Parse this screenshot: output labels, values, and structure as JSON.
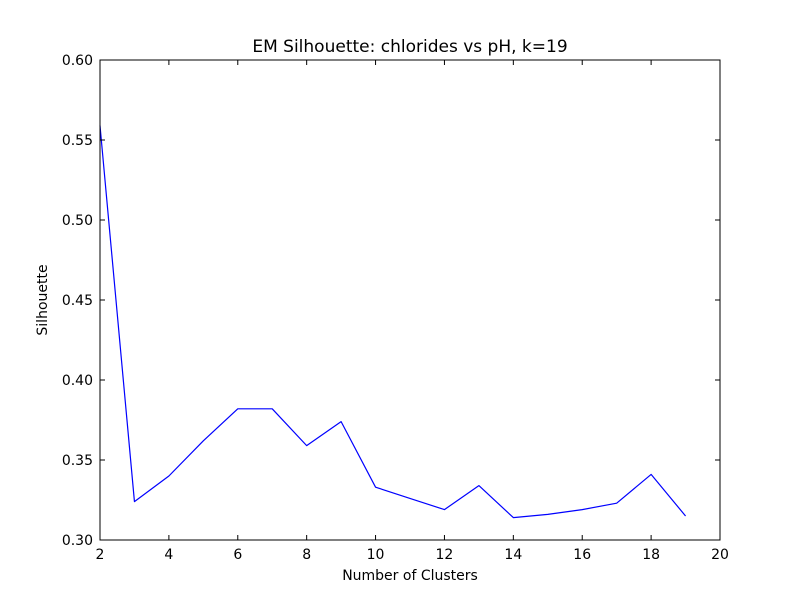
{
  "chart_data": {
    "type": "line",
    "title": "EM Silhouette: chlorides vs pH, k=19",
    "xlabel": "Number of Clusters",
    "ylabel": "Silhouette",
    "xlim": [
      2,
      20
    ],
    "ylim": [
      0.3,
      0.6
    ],
    "xticks": [
      "2",
      "4",
      "6",
      "8",
      "10",
      "12",
      "14",
      "16",
      "18",
      "20"
    ],
    "yticks": [
      "0.30",
      "0.35",
      "0.40",
      "0.45",
      "0.50",
      "0.55",
      "0.60"
    ],
    "grid": false,
    "series": [
      {
        "color": "#0000ff",
        "x": [
          2,
          3,
          4,
          5,
          6,
          7,
          8,
          9,
          10,
          11,
          12,
          13,
          14,
          15,
          16,
          17,
          18,
          19
        ],
        "y": [
          0.559,
          0.324,
          0.34,
          0.362,
          0.382,
          0.382,
          0.359,
          0.374,
          0.333,
          0.326,
          0.319,
          0.334,
          0.314,
          0.316,
          0.319,
          0.323,
          0.341,
          0.315
        ]
      }
    ]
  }
}
